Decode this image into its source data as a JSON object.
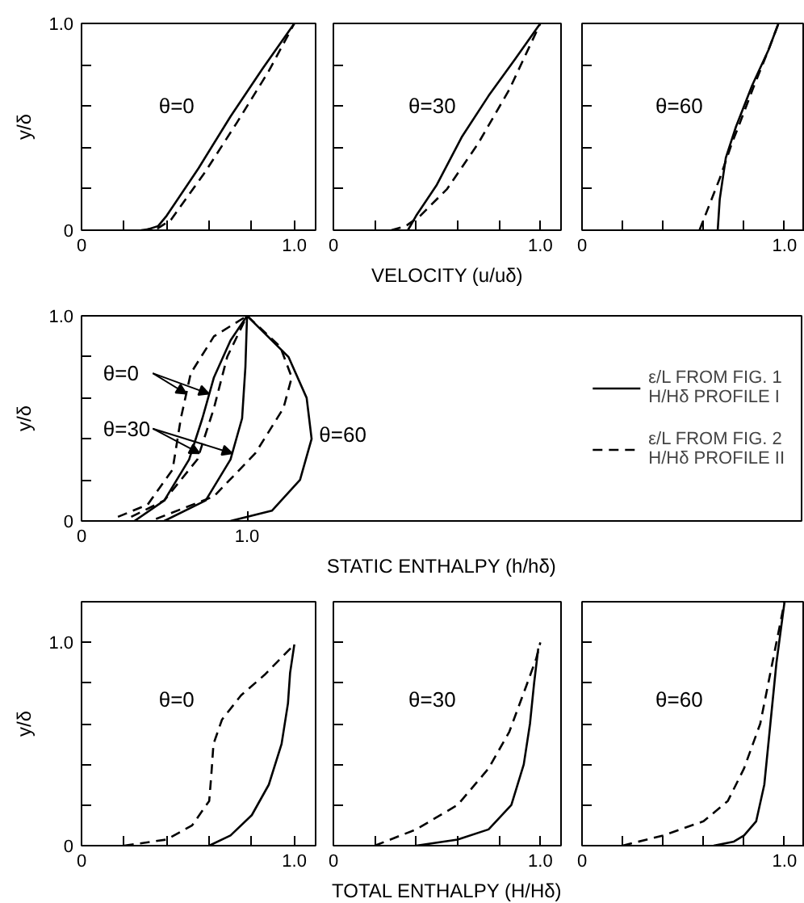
{
  "chart_data": [
    {
      "type": "line",
      "ylabel": "y/δ",
      "xlim": [
        0,
        1.1
      ],
      "ylim": [
        0,
        1.0
      ],
      "xticks": [
        0,
        {
          "value": 0.2,
          "label": null
        },
        {
          "value": 0.4,
          "label": null
        },
        {
          "value": 0.6,
          "label": null
        },
        {
          "value": 0.8,
          "label": null
        },
        {
          "value": 1.0,
          "label": "1.0"
        }
      ],
      "yticks": [
        0,
        {
          "value": 0.2,
          "label": null
        },
        {
          "value": 0.4,
          "label": null
        },
        {
          "value": 0.6,
          "label": null
        },
        {
          "value": 0.8,
          "label": null
        },
        {
          "value": 1.0,
          "label": "1.0"
        }
      ],
      "annotations": [
        "θ=0"
      ],
      "series": [
        {
          "color": "#000000",
          "line_style": "solid",
          "x": [
            0.3,
            0.36,
            0.4,
            0.55,
            0.7,
            0.85,
            1.0
          ],
          "values": [
            0,
            0.02,
            0.07,
            0.3,
            0.55,
            0.78,
            1.0
          ]
        },
        {
          "color": "#000000",
          "line_style": "dashed",
          "x": [
            0.28,
            0.36,
            0.42,
            0.58,
            0.73,
            0.88,
            1.0
          ],
          "values": [
            0,
            0.01,
            0.05,
            0.28,
            0.52,
            0.77,
            1.0
          ]
        }
      ]
    },
    {
      "type": "line",
      "xlabel": "VELOCITY (u/uδ)",
      "xlim": [
        0,
        1.1
      ],
      "ylim": [
        0,
        1.0
      ],
      "tick_labels": "x",
      "xticks": [
        0,
        {
          "value": 0.2,
          "label": null
        },
        {
          "value": 0.4,
          "label": null
        },
        {
          "value": 0.6,
          "label": null
        },
        {
          "value": 0.8,
          "label": null
        },
        {
          "value": 1.0,
          "label": "1.0"
        }
      ],
      "yticks": [
        0,
        0.2,
        0.4,
        0.6,
        0.8,
        1.0
      ],
      "annotations": [
        "θ=30"
      ],
      "series": [
        {
          "color": "#000000",
          "line_style": "solid",
          "x": [
            0.36,
            0.4,
            0.5,
            0.62,
            0.75,
            0.88,
            1.0
          ],
          "values": [
            0,
            0.07,
            0.22,
            0.45,
            0.65,
            0.83,
            1.0
          ]
        },
        {
          "color": "#000000",
          "line_style": "dashed",
          "x": [
            0.28,
            0.35,
            0.42,
            0.55,
            0.7,
            0.85,
            1.0
          ],
          "values": [
            0,
            0.02,
            0.07,
            0.2,
            0.42,
            0.68,
            1.0
          ]
        }
      ]
    },
    {
      "type": "line",
      "xlim": [
        0,
        1.1
      ],
      "ylim": [
        0,
        1.0
      ],
      "tick_labels": "x",
      "xticks": [
        0,
        {
          "value": 0.2,
          "label": null
        },
        {
          "value": 0.4,
          "label": null
        },
        {
          "value": 0.6,
          "label": null
        },
        {
          "value": 0.8,
          "label": null
        },
        {
          "value": 1.0,
          "label": "1.0"
        }
      ],
      "yticks": [
        0,
        0.2,
        0.4,
        0.6,
        0.8,
        1.0
      ],
      "annotations": [
        "θ=60"
      ],
      "series": [
        {
          "color": "#000000",
          "line_style": "solid",
          "x": [
            0.67,
            0.68,
            0.71,
            0.76,
            0.84,
            0.92,
            0.97
          ],
          "values": [
            0,
            0.15,
            0.35,
            0.5,
            0.7,
            0.87,
            1.0
          ]
        },
        {
          "color": "#000000",
          "line_style": "dashed",
          "x": [
            0.58,
            0.62,
            0.68,
            0.74,
            0.78,
            0.85,
            0.92,
            0.97
          ],
          "values": [
            0,
            0.1,
            0.25,
            0.42,
            0.52,
            0.7,
            0.87,
            1.0
          ]
        }
      ]
    },
    {
      "type": "line",
      "ylabel": "y/δ",
      "xlabel": "STATIC ENTHALPY (h/hδ)",
      "xlim": [
        0,
        4.35
      ],
      "ylim": [
        0,
        1.0
      ],
      "legend": "right",
      "xticks": [
        0,
        {
          "value": 1.0,
          "label": "1.0"
        }
      ],
      "yticks": [
        0,
        {
          "value": 0.2,
          "label": null
        },
        {
          "value": 0.4,
          "label": null
        },
        {
          "value": 0.6,
          "label": null
        },
        {
          "value": 0.8,
          "label": null
        },
        {
          "value": 1.0,
          "label": "1.0"
        }
      ],
      "annotations": [
        {
          "text": "θ=0",
          "x": 0.77,
          "y": 0.62
        },
        {
          "text": "θ=30",
          "x": 0.91,
          "y": 0.33
        },
        "θ=60"
      ],
      "series": [
        {
          "name": "ε/L FROM FIG. 1\nH/Hδ PROFILE I",
          "color": "#000000",
          "line_style": "solid",
          "x": [
            0.32,
            0.5,
            0.65,
            0.73,
            0.8,
            0.9,
            1.0
          ],
          "values": [
            0,
            0.1,
            0.3,
            0.5,
            0.7,
            0.88,
            1.0
          ]
        },
        {
          "name": "ε/L FROM FIG. 2\nH/Hδ PROFILE II",
          "color": "#000000",
          "line_style": "dashed",
          "x": [
            0.22,
            0.4,
            0.55,
            0.6,
            0.66,
            0.8,
            1.0
          ],
          "values": [
            0.02,
            0.08,
            0.25,
            0.5,
            0.72,
            0.9,
            1.0
          ]
        },
        {
          "color": "#000000",
          "line_style": "solid",
          "x": [
            0.5,
            0.75,
            0.9,
            0.97,
            0.99,
            1.0
          ],
          "values": [
            0,
            0.1,
            0.3,
            0.5,
            0.75,
            1.0
          ]
        },
        {
          "color": "#000000",
          "line_style": "dashed",
          "x": [
            0.3,
            0.5,
            0.7,
            0.8,
            0.88,
            1.0
          ],
          "values": [
            0.02,
            0.1,
            0.3,
            0.55,
            0.8,
            1.0
          ]
        },
        {
          "color": "#000000",
          "line_style": "solid",
          "x": [
            0.9,
            1.15,
            1.32,
            1.39,
            1.36,
            1.25,
            1.0
          ],
          "values": [
            0,
            0.05,
            0.2,
            0.4,
            0.6,
            0.8,
            1.0
          ]
        },
        {
          "color": "#000000",
          "line_style": "dashed",
          "x": [
            0.45,
            0.8,
            1.05,
            1.22,
            1.27,
            1.2,
            1.0
          ],
          "values": [
            0.01,
            0.12,
            0.33,
            0.55,
            0.7,
            0.85,
            1.0
          ]
        }
      ]
    },
    {
      "type": "line",
      "ylabel": "y/δ",
      "xlim": [
        0,
        1.1
      ],
      "ylim": [
        0,
        1.2
      ],
      "xticks": [
        0,
        {
          "value": 0.2,
          "label": null
        },
        {
          "value": 0.4,
          "label": null
        },
        {
          "value": 0.6,
          "label": null
        },
        {
          "value": 0.8,
          "label": null
        },
        {
          "value": 1.0,
          "label": "1.0"
        }
      ],
      "yticks": [
        0,
        {
          "value": 0.2,
          "label": null
        },
        {
          "value": 0.4,
          "label": null
        },
        {
          "value": 0.6,
          "label": null
        },
        {
          "value": 0.8,
          "label": null
        },
        {
          "value": 1.0,
          "label": "1.0"
        }
      ],
      "annotations": [
        "θ=0"
      ],
      "series": [
        {
          "color": "#000000",
          "line_style": "solid",
          "x": [
            0.6,
            0.7,
            0.8,
            0.88,
            0.94,
            0.97,
            0.98,
            1.0
          ],
          "values": [
            0,
            0.05,
            0.15,
            0.3,
            0.5,
            0.7,
            0.85,
            0.99
          ]
        },
        {
          "color": "#000000",
          "line_style": "dashed",
          "x": [
            0.2,
            0.4,
            0.52,
            0.6,
            0.61,
            0.62,
            0.66,
            0.75,
            0.86,
            1.0
          ],
          "values": [
            0,
            0.03,
            0.1,
            0.22,
            0.35,
            0.5,
            0.62,
            0.74,
            0.84,
            0.99
          ]
        }
      ]
    },
    {
      "type": "line",
      "xlabel": "TOTAL ENTHALPY (H/Hδ)",
      "xlim": [
        0,
        1.1
      ],
      "ylim": [
        0,
        1.2
      ],
      "tick_labels": "x",
      "xticks": [
        0,
        {
          "value": 0.2,
          "label": null
        },
        {
          "value": 0.4,
          "label": null
        },
        {
          "value": 0.6,
          "label": null
        },
        {
          "value": 0.8,
          "label": null
        },
        {
          "value": 1.0,
          "label": "1.0"
        }
      ],
      "yticks": [
        0,
        0.2,
        0.4,
        0.6,
        0.8,
        1.0
      ],
      "annotations": [
        "θ=30"
      ],
      "series": [
        {
          "color": "#000000",
          "line_style": "solid",
          "x": [
            0.4,
            0.6,
            0.75,
            0.86,
            0.92,
            0.95,
            0.97,
            0.99
          ],
          "values": [
            0,
            0.03,
            0.08,
            0.2,
            0.4,
            0.6,
            0.8,
            0.97
          ]
        },
        {
          "color": "#000000",
          "line_style": "dashed",
          "x": [
            0.2,
            0.4,
            0.6,
            0.75,
            0.85,
            0.93,
            0.98,
            1.0
          ],
          "values": [
            0,
            0.08,
            0.2,
            0.38,
            0.56,
            0.78,
            0.92,
            1.0
          ]
        }
      ]
    },
    {
      "type": "line",
      "xlim": [
        0,
        1.1
      ],
      "ylim": [
        0,
        1.2
      ],
      "tick_labels": "x",
      "xticks": [
        0,
        {
          "value": 0.2,
          "label": null
        },
        {
          "value": 0.4,
          "label": null
        },
        {
          "value": 0.6,
          "label": null
        },
        {
          "value": 0.8,
          "label": null
        },
        {
          "value": 1.0,
          "label": "1.0"
        }
      ],
      "yticks": [
        0,
        0.2,
        0.4,
        0.6,
        0.8,
        1.0
      ],
      "annotations": [
        "θ=60"
      ],
      "series": [
        {
          "color": "#000000",
          "line_style": "solid",
          "x": [
            0.65,
            0.75,
            0.8,
            0.86,
            0.9,
            0.93,
            0.96,
            1.0
          ],
          "values": [
            0,
            0.02,
            0.05,
            0.12,
            0.3,
            0.6,
            0.9,
            1.2
          ]
        },
        {
          "color": "#000000",
          "line_style": "dashed",
          "x": [
            0.2,
            0.4,
            0.6,
            0.72,
            0.8,
            0.88,
            0.93,
            1.0
          ],
          "values": [
            0,
            0.05,
            0.12,
            0.22,
            0.38,
            0.6,
            0.85,
            1.2
          ]
        }
      ]
    }
  ]
}
